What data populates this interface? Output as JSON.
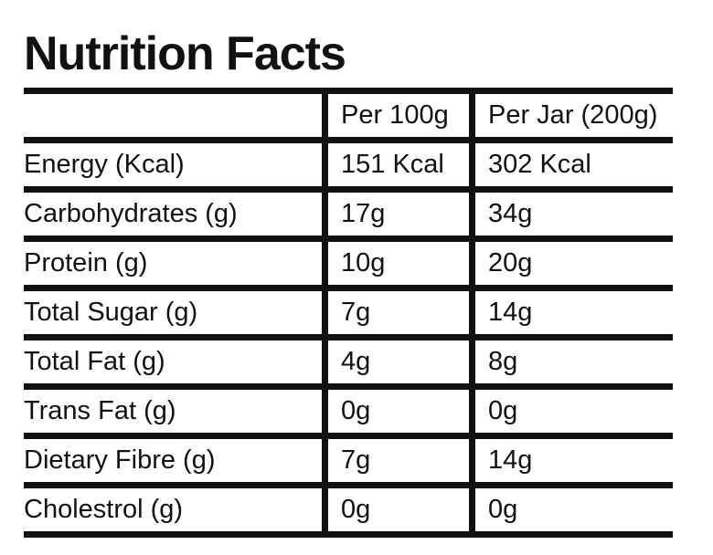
{
  "title": "Nutrition Facts",
  "table": {
    "headers": [
      "",
      "Per 100g",
      "Per Jar (200g)"
    ],
    "rows": [
      [
        "Energy (Kcal)",
        "151 Kcal",
        "302 Kcal"
      ],
      [
        "Carbohydrates (g)",
        "17g",
        "34g"
      ],
      [
        "Protein (g)",
        "10g",
        "20g"
      ],
      [
        "Total Sugar (g)",
        "7g",
        "14g"
      ],
      [
        "Total Fat (g)",
        "4g",
        "8g"
      ],
      [
        "Trans Fat (g)",
        "0g",
        "0g"
      ],
      [
        "Dietary Fibre (g)",
        "7g",
        "14g"
      ],
      [
        "Cholestrol (g)",
        "0g",
        "0g"
      ]
    ]
  }
}
